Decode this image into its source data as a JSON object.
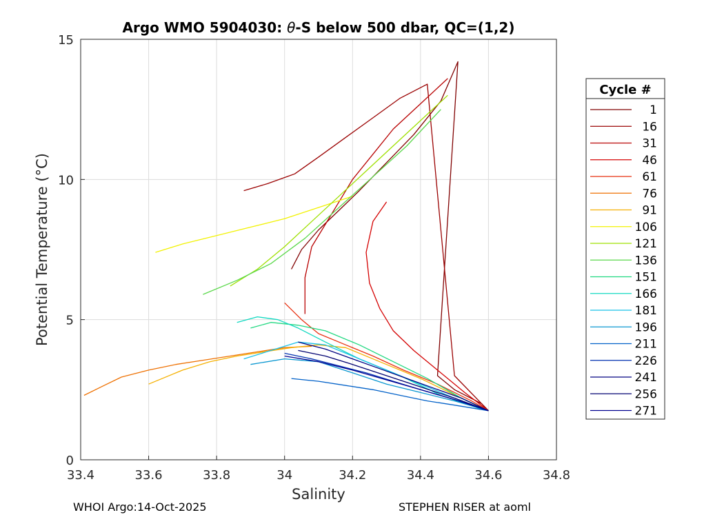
{
  "chart_data": {
    "type": "line",
    "title": "Argo WMO 5904030: θ-S below 500 dbar,  QC=(1,2)",
    "title_prefix": "Argo WMO 5904030: ",
    "title_theta": "θ",
    "title_suffix": "-S below 500 dbar,  QC=(1,2)",
    "xlabel": "Salinity",
    "ylabel": "Potential Temperature (°C)",
    "xlim": [
      33.4,
      34.8
    ],
    "ylim": [
      0,
      15
    ],
    "xticks": [
      33.4,
      33.6,
      33.8,
      34,
      34.2,
      34.4,
      34.6,
      34.8
    ],
    "xtick_labels": [
      "33.4",
      "33.6",
      "33.8",
      "34",
      "34.2",
      "34.4",
      "34.6",
      "34.8"
    ],
    "yticks": [
      0,
      5,
      10,
      15
    ],
    "ytick_labels": [
      "0",
      "5",
      "10",
      "15"
    ],
    "grid": true,
    "legend_position": "right",
    "legend_title": "Cycle #",
    "legend": [
      {
        "label": "1",
        "color": "#800000"
      },
      {
        "label": "16",
        "color": "#9a0000"
      },
      {
        "label": "31",
        "color": "#b80000"
      },
      {
        "label": "46",
        "color": "#d40000"
      },
      {
        "label": "61",
        "color": "#e83010"
      },
      {
        "label": "76",
        "color": "#ee7000"
      },
      {
        "label": "91",
        "color": "#f5b000"
      },
      {
        "label": "106",
        "color": "#f2f200"
      },
      {
        "label": "121",
        "color": "#9ee000"
      },
      {
        "label": "136",
        "color": "#5ad84a"
      },
      {
        "label": "151",
        "color": "#20d880"
      },
      {
        "label": "166",
        "color": "#10d8c0"
      },
      {
        "label": "181",
        "color": "#18c0e8"
      },
      {
        "label": "196",
        "color": "#0896d0"
      },
      {
        "label": "211",
        "color": "#0060c8"
      },
      {
        "label": "226",
        "color": "#0030b0"
      },
      {
        "label": "241",
        "color": "#000080"
      },
      {
        "label": "256",
        "color": "#000070"
      },
      {
        "label": "271",
        "color": "#000090"
      }
    ],
    "series": [
      {
        "name": "1",
        "color": "#800000",
        "x": [
          34.02,
          34.05,
          34.1,
          34.16,
          34.22,
          34.3,
          34.38,
          34.46,
          34.51,
          34.45,
          34.5,
          34.58,
          34.6
        ],
        "y": [
          6.8,
          7.5,
          8.2,
          8.9,
          9.6,
          10.6,
          11.6,
          12.8,
          14.2,
          3.0,
          2.5,
          2.0,
          1.75
        ]
      },
      {
        "name": "16",
        "color": "#9a0000",
        "x": [
          33.88,
          33.95,
          34.03,
          34.1,
          34.18,
          34.26,
          34.34,
          34.42,
          34.5,
          34.6
        ],
        "y": [
          9.6,
          9.85,
          10.2,
          10.8,
          11.5,
          12.2,
          12.9,
          13.4,
          3.0,
          1.75
        ]
      },
      {
        "name": "31",
        "color": "#b80000",
        "x": [
          34.06,
          34.06,
          34.08,
          34.12,
          34.16,
          34.2,
          34.26,
          34.32,
          34.4,
          34.48
        ],
        "y": [
          5.2,
          6.5,
          7.6,
          8.4,
          9.2,
          10.0,
          10.9,
          11.8,
          12.7,
          13.6
        ]
      },
      {
        "name": "46",
        "color": "#d40000",
        "x": [
          34.3,
          34.26,
          34.24,
          34.25,
          34.28,
          34.32,
          34.38,
          34.45,
          34.53,
          34.6
        ],
        "y": [
          9.2,
          8.5,
          7.4,
          6.3,
          5.4,
          4.6,
          3.9,
          3.2,
          2.4,
          1.75
        ]
      },
      {
        "name": "61",
        "color": "#e83010",
        "x": [
          34.0,
          34.05,
          34.1,
          34.18,
          34.26,
          34.35,
          34.45,
          34.55,
          34.6
        ],
        "y": [
          5.6,
          5.0,
          4.5,
          4.1,
          3.7,
          3.2,
          2.7,
          2.1,
          1.75
        ]
      },
      {
        "name": "76",
        "color": "#ee7000",
        "x": [
          33.41,
          33.46,
          33.52,
          33.6,
          33.68,
          33.76,
          33.84,
          33.92,
          34.0,
          34.08
        ],
        "y": [
          2.3,
          2.6,
          2.95,
          3.2,
          3.4,
          3.55,
          3.7,
          3.85,
          4.0,
          4.05
        ]
      },
      {
        "name": "91",
        "color": "#f5b000",
        "x": [
          33.6,
          33.7,
          33.78,
          33.86,
          33.94,
          34.02,
          34.1,
          34.18,
          34.28,
          34.4,
          34.52,
          34.6
        ],
        "y": [
          2.7,
          3.2,
          3.5,
          3.7,
          3.85,
          4.0,
          4.1,
          4.0,
          3.5,
          2.9,
          2.2,
          1.75
        ]
      },
      {
        "name": "106",
        "color": "#f2f200",
        "x": [
          33.62,
          33.7,
          33.8,
          33.9,
          34.0,
          34.1,
          34.2
        ],
        "y": [
          7.4,
          7.7,
          8.0,
          8.3,
          8.6,
          9.0,
          9.4
        ]
      },
      {
        "name": "121",
        "color": "#9ee000",
        "x": [
          33.84,
          33.92,
          34.0,
          34.08,
          34.16,
          34.24,
          34.32,
          34.4,
          34.48
        ],
        "y": [
          6.2,
          6.8,
          7.6,
          8.5,
          9.4,
          10.3,
          11.2,
          12.1,
          13.0
        ]
      },
      {
        "name": "136",
        "color": "#5ad84a",
        "x": [
          33.76,
          33.86,
          33.96,
          34.06,
          34.16,
          34.26,
          34.36,
          34.46
        ],
        "y": [
          5.9,
          6.4,
          7.0,
          7.9,
          9.0,
          10.1,
          11.2,
          12.5
        ]
      },
      {
        "name": "151",
        "color": "#20d880",
        "x": [
          33.9,
          33.96,
          34.04,
          34.12,
          34.22,
          34.32,
          34.42,
          34.52,
          34.6
        ],
        "y": [
          4.7,
          4.9,
          4.8,
          4.6,
          4.1,
          3.5,
          2.9,
          2.2,
          1.75
        ]
      },
      {
        "name": "166",
        "color": "#10d8c0",
        "x": [
          33.86,
          33.92,
          33.98,
          34.04,
          34.12,
          34.22,
          34.34,
          34.46,
          34.58
        ],
        "y": [
          4.9,
          5.1,
          5.0,
          4.7,
          4.2,
          3.6,
          3.0,
          2.3,
          1.8
        ]
      },
      {
        "name": "181",
        "color": "#18c0e8",
        "x": [
          33.88,
          33.96,
          34.04,
          34.12,
          34.22,
          34.32,
          34.42,
          34.52,
          34.6
        ],
        "y": [
          3.6,
          3.9,
          4.2,
          4.1,
          3.6,
          3.1,
          2.6,
          2.1,
          1.75
        ]
      },
      {
        "name": "196",
        "color": "#0896d0",
        "x": [
          33.9,
          34.0,
          34.1,
          34.2,
          34.3,
          34.4,
          34.5,
          34.6
        ],
        "y": [
          3.4,
          3.6,
          3.5,
          3.1,
          2.7,
          2.4,
          2.1,
          1.75
        ]
      },
      {
        "name": "211",
        "color": "#0060c8",
        "x": [
          34.02,
          34.1,
          34.18,
          34.26,
          34.34,
          34.42,
          34.5,
          34.6
        ],
        "y": [
          2.9,
          2.8,
          2.65,
          2.5,
          2.3,
          2.1,
          1.95,
          1.75
        ]
      },
      {
        "name": "226",
        "color": "#0030b0",
        "x": [
          34.0,
          34.08,
          34.16,
          34.24,
          34.32,
          34.4,
          34.5,
          34.6
        ],
        "y": [
          3.8,
          3.6,
          3.35,
          3.1,
          2.8,
          2.5,
          2.15,
          1.75
        ]
      },
      {
        "name": "241",
        "color": "#000080",
        "x": [
          34.04,
          34.12,
          34.2,
          34.28,
          34.36,
          34.44,
          34.52,
          34.6
        ],
        "y": [
          4.2,
          3.95,
          3.6,
          3.25,
          2.9,
          2.55,
          2.2,
          1.75
        ]
      },
      {
        "name": "256",
        "color": "#000070",
        "x": [
          34.04,
          34.12,
          34.2,
          34.3,
          34.4,
          34.5,
          34.6
        ],
        "y": [
          3.9,
          3.7,
          3.4,
          3.0,
          2.6,
          2.2,
          1.75
        ]
      },
      {
        "name": "271",
        "color": "#000090",
        "x": [
          34.0,
          34.1,
          34.2,
          34.3,
          34.4,
          34.5,
          34.6
        ],
        "y": [
          3.7,
          3.5,
          3.2,
          2.85,
          2.5,
          2.15,
          1.75
        ]
      }
    ]
  },
  "footer": {
    "left": "WHOI Argo:14-Oct-2025",
    "right": "STEPHEN RISER at aoml"
  }
}
